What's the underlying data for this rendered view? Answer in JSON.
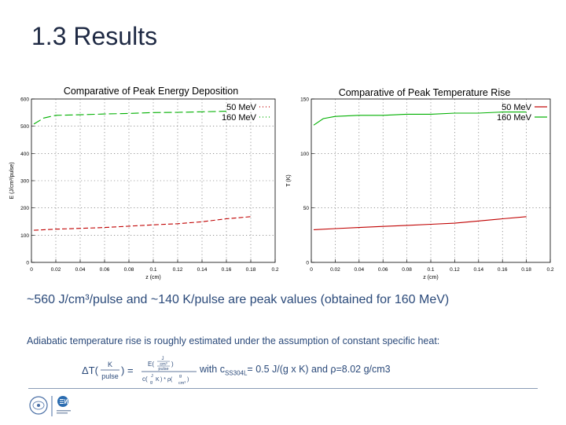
{
  "slide": {
    "title": "1.3 Results",
    "summary": "~560 J/cm³/pulse and ~140 K/pulse are peak values (obtained for 160 MeV)",
    "note": "Adiabatic temperature rise is roughly estimated under the assumption of constant specific heat:",
    "formula": {
      "lhs": "ΔT(",
      "lhs_num": "K",
      "lhs_den": "pulse",
      "lhs_close": ") =",
      "num_E": "E(",
      "num_J": "J",
      "num_cm3": "cm³",
      "num_pulse": "pulse",
      "num_close": ")",
      "den_c": "c(",
      "den_J": "J",
      "den_gK": "g",
      "den_K": "K",
      "den_rho": ") * ρ(",
      "den_g": "g",
      "den_cm3": "cm³",
      "den_close": ")",
      "rhs_with": "with c",
      "rhs_sub": "SS304L",
      "rhs_values": "= 0.5 J/(g x K) and ρ=8.02 g/cm3"
    }
  },
  "chart_data": [
    {
      "type": "line",
      "title": "Comparative of Peak Energy Deposition",
      "xlabel": "z (cm)",
      "ylabel": "E (J/cm³/pulse)",
      "xlim": [
        0,
        0.2
      ],
      "ylim": [
        0,
        600
      ],
      "x_ticks": [
        "0",
        "0.02",
        "0.04",
        "0.06",
        "0.08",
        "0.1",
        "0.12",
        "0.14",
        "0.16",
        "0.18",
        "0.2"
      ],
      "y_ticks": [
        "0",
        "100",
        "200",
        "300",
        "400",
        "500",
        "600"
      ],
      "legend": "top-right",
      "grid": true,
      "series": [
        {
          "name": "50 MeV",
          "color": "#c00000",
          "x": [
            0.002,
            0.02,
            0.04,
            0.06,
            0.08,
            0.1,
            0.12,
            0.14,
            0.16,
            0.18
          ],
          "y": [
            118,
            122,
            125,
            128,
            133,
            138,
            142,
            149,
            160,
            168
          ]
        },
        {
          "name": "160 MeV",
          "color": "#00b000",
          "x": [
            0.002,
            0.01,
            0.02,
            0.04,
            0.06,
            0.08,
            0.1,
            0.12,
            0.14,
            0.16
          ],
          "y": [
            508,
            530,
            540,
            542,
            545,
            547,
            550,
            551,
            553,
            555
          ]
        }
      ]
    },
    {
      "type": "line",
      "title": "Comparative of Peak Temperature Rise",
      "xlabel": "z (cm)",
      "ylabel": "T (K)",
      "xlim": [
        0,
        0.2
      ],
      "ylim": [
        0,
        150
      ],
      "x_ticks": [
        "0",
        "0.02",
        "0.04",
        "0.06",
        "0.08",
        "0.1",
        "0.12",
        "0.14",
        "0.16",
        "0.18",
        "0.2"
      ],
      "y_ticks": [
        "0",
        "50",
        "100",
        "150"
      ],
      "legend": "top-right",
      "grid": true,
      "series": [
        {
          "name": "50 MeV",
          "color": "#c00000",
          "x": [
            0.002,
            0.02,
            0.04,
            0.06,
            0.08,
            0.1,
            0.12,
            0.14,
            0.16,
            0.18
          ],
          "y": [
            30,
            31,
            32,
            33,
            34,
            35,
            36,
            38,
            40,
            42
          ]
        },
        {
          "name": "160 MeV",
          "color": "#00b000",
          "x": [
            0.002,
            0.01,
            0.02,
            0.04,
            0.06,
            0.08,
            0.1,
            0.12,
            0.14,
            0.16,
            0.18
          ],
          "y": [
            126,
            132,
            134,
            135,
            135,
            136,
            136,
            137,
            137,
            138,
            138
          ]
        }
      ]
    }
  ]
}
